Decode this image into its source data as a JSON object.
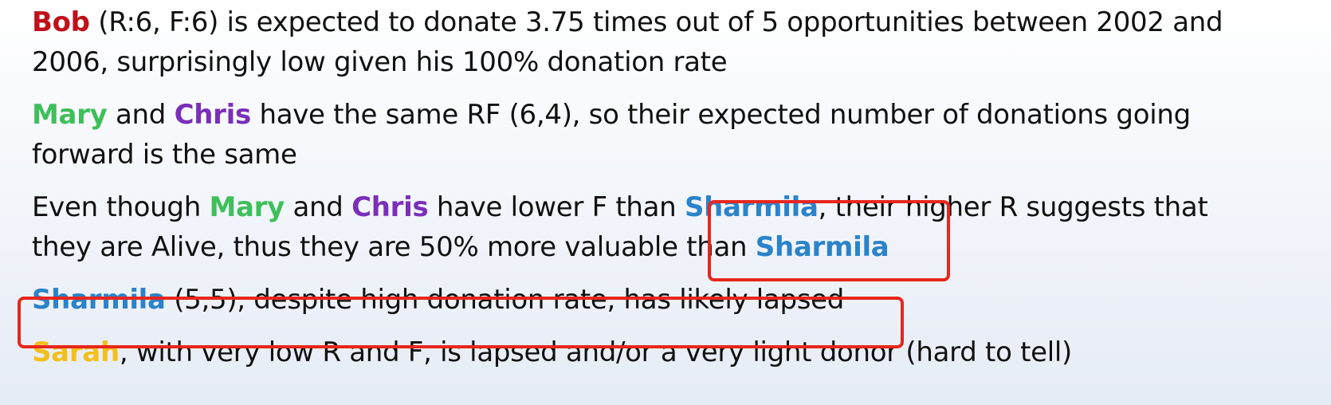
{
  "colors": {
    "bob": "#c0101a",
    "mary": "#3fbf5b",
    "chris": "#7a2fb8",
    "sharmila": "#2b83c9",
    "sarah": "#f2c01d",
    "highlight": "#e8261c"
  },
  "p1": {
    "name": "Bob",
    "l1": " (R:6, F:6) is expected to donate 3.75 times out of 5  opportunities between 2002 and",
    "l2": "2006, surprisingly low given his 100% donation rate"
  },
  "p2": {
    "name1": "Mary",
    "and": " and ",
    "name2": "Chris",
    "l1": " have the same RF (6,4), so their expected number of donations going",
    "l2": "forward is the same"
  },
  "p3": {
    "lead": "Even though ",
    "name1": "Mary",
    "and": " and ",
    "name2": "Chris",
    "mid": " have lower F than ",
    "name3": "Sharmila",
    "l1_rest": ", their higher R suggests that",
    "l2_lead": "they are Alive, thus they are 50% more valuable than ",
    "name4": "Sharmila"
  },
  "p4": {
    "name": "Sharmila",
    "rest": " (5,5), despite high donation rate, has likely lapsed"
  },
  "p5": {
    "name": "Sarah",
    "rest": ", with very low R and F, is lapsed and/or a very light donor (hard to tell)"
  }
}
